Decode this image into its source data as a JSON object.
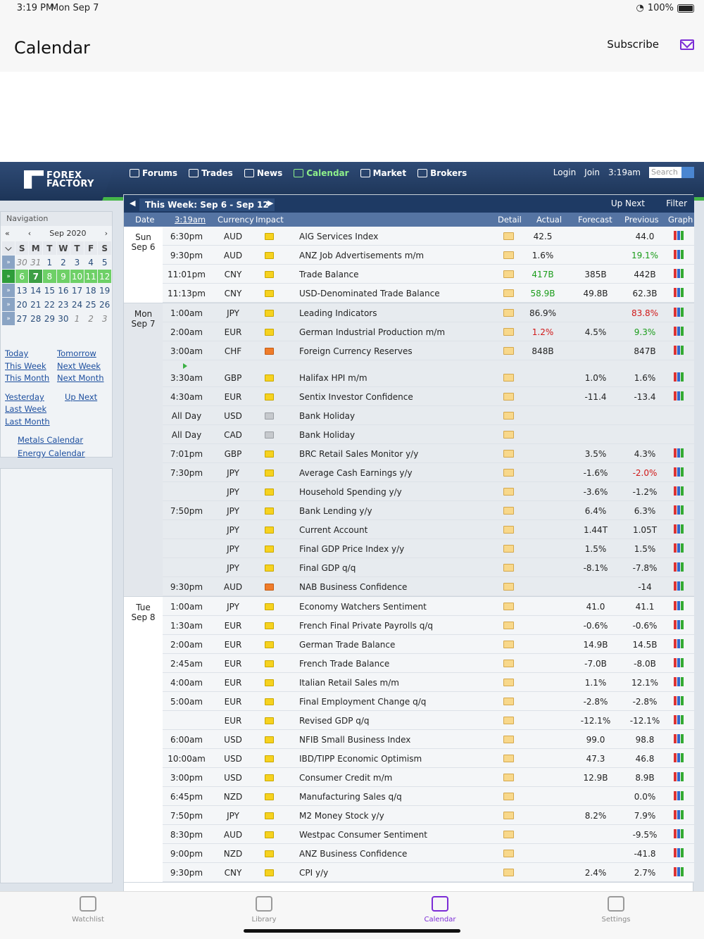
{
  "status_bar": {
    "time": "3:19 PM",
    "date": "Mon Sep 7",
    "battery": "100%"
  },
  "app_header": {
    "title": "Calendar",
    "subscribe": "Subscribe"
  },
  "site": {
    "logo": [
      "FOREX",
      "FACTORY"
    ],
    "nav": [
      {
        "label": "Forums"
      },
      {
        "label": "Trades"
      },
      {
        "label": "News"
      },
      {
        "label": "Calendar"
      },
      {
        "label": "Market"
      },
      {
        "label": "Brokers"
      }
    ],
    "right": {
      "login": "Login",
      "join": "Join",
      "clock": "3:19am",
      "search_placeholder": "Search"
    }
  },
  "sidebar": {
    "heading": "Navigation",
    "cal_prev2": "«",
    "cal_prev": "‹",
    "cal_next": "›",
    "month": "Sep 2020",
    "days": [
      "S",
      "M",
      "T",
      "W",
      "T",
      "F",
      "S"
    ],
    "weeks": [
      [
        "30",
        "31",
        "1",
        "2",
        "3",
        "4",
        "5"
      ],
      [
        "6",
        "7",
        "8",
        "9",
        "10",
        "11",
        "12"
      ],
      [
        "13",
        "14",
        "15",
        "16",
        "17",
        "18",
        "19"
      ],
      [
        "20",
        "21",
        "22",
        "23",
        "24",
        "25",
        "26"
      ],
      [
        "27",
        "28",
        "29",
        "30",
        "1",
        "2",
        "3"
      ]
    ],
    "links": {
      "today": "Today",
      "tomorrow": "Tomorrow",
      "this_week": "This Week",
      "next_week": "Next Week",
      "this_month": "This Month",
      "next_month": "Next Month",
      "yesterday": "Yesterday",
      "up_next": "Up Next",
      "last_week": "Last Week",
      "last_month": "Last Month",
      "metals": "Metals Calendar",
      "energy": "Energy Calendar"
    }
  },
  "calendar": {
    "week_label": "This Week: Sep 6 - Sep 12",
    "up_next": "Up Next",
    "filter": "Filter",
    "columns": {
      "date": "Date",
      "time": "3:19am",
      "currency": "Currency",
      "impact": "Impact",
      "detail": "Detail",
      "actual": "Actual",
      "forecast": "Forecast",
      "previous": "Previous",
      "graph": "Graph"
    },
    "days": [
      {
        "label": "Sun",
        "date": "Sep 6",
        "events": [
          {
            "time": "6:30pm",
            "cur": "AUD",
            "impact": "yellow",
            "title": "AIG Services Index",
            "actual": "42.5",
            "forecast": "",
            "previous": "44.0"
          },
          {
            "time": "9:30pm",
            "cur": "AUD",
            "impact": "yellow",
            "title": "ANZ Job Advertisements m/m",
            "actual": "1.6%",
            "forecast": "",
            "previous": "19.1%",
            "prev_color": "green"
          },
          {
            "time": "11:01pm",
            "cur": "CNY",
            "impact": "yellow",
            "title": "Trade Balance",
            "actual": "417B",
            "act_color": "green",
            "forecast": "385B",
            "previous": "442B"
          },
          {
            "time": "11:13pm",
            "cur": "CNY",
            "impact": "yellow",
            "title": "USD-Denominated Trade Balance",
            "actual": "58.9B",
            "act_color": "green",
            "forecast": "49.8B",
            "previous": "62.3B"
          }
        ]
      },
      {
        "label": "Mon",
        "date": "Sep 7",
        "alt": true,
        "events": [
          {
            "time": "1:00am",
            "cur": "JPY",
            "impact": "yellow",
            "title": "Leading Indicators",
            "actual": "86.9%",
            "forecast": "",
            "previous": "83.8%",
            "prev_color": "red"
          },
          {
            "time": "2:00am",
            "cur": "EUR",
            "impact": "yellow",
            "title": "German Industrial Production m/m",
            "actual": "1.2%",
            "act_color": "red",
            "forecast": "4.5%",
            "previous": "9.3%",
            "prev_color": "green"
          },
          {
            "time": "3:00am",
            "cur": "CHF",
            "impact": "orange",
            "title": "Foreign Currency Reserves",
            "actual": "848B",
            "forecast": "",
            "previous": "847B"
          },
          {
            "time": "3:30am",
            "cur": "GBP",
            "impact": "yellow",
            "title": "Halifax HPI m/m",
            "actual": "",
            "forecast": "1.0%",
            "previous": "1.6%",
            "tall": true
          },
          {
            "time": "4:30am",
            "cur": "EUR",
            "impact": "yellow",
            "title": "Sentix Investor Confidence",
            "actual": "",
            "forecast": "-11.4",
            "previous": "-13.4"
          },
          {
            "time": "All Day",
            "cur": "USD",
            "impact": "gray",
            "title": "Bank Holiday",
            "actual": "",
            "forecast": "",
            "previous": "",
            "nograph": true
          },
          {
            "time": "All Day",
            "cur": "CAD",
            "impact": "gray",
            "title": "Bank Holiday",
            "actual": "",
            "forecast": "",
            "previous": "",
            "nograph": true
          },
          {
            "time": "7:01pm",
            "cur": "GBP",
            "impact": "yellow",
            "title": "BRC Retail Sales Monitor y/y",
            "actual": "",
            "forecast": "3.5%",
            "previous": "4.3%"
          },
          {
            "time": "7:30pm",
            "cur": "JPY",
            "impact": "yellow",
            "title": "Average Cash Earnings y/y",
            "actual": "",
            "forecast": "-1.6%",
            "previous": "-2.0%",
            "prev_color": "red"
          },
          {
            "time": "",
            "cur": "JPY",
            "impact": "yellow",
            "title": "Household Spending y/y",
            "actual": "",
            "forecast": "-3.6%",
            "previous": "-1.2%"
          },
          {
            "time": "7:50pm",
            "cur": "JPY",
            "impact": "yellow",
            "title": "Bank Lending y/y",
            "actual": "",
            "forecast": "6.4%",
            "previous": "6.3%"
          },
          {
            "time": "",
            "cur": "JPY",
            "impact": "yellow",
            "title": "Current Account",
            "actual": "",
            "forecast": "1.44T",
            "previous": "1.05T"
          },
          {
            "time": "",
            "cur": "JPY",
            "impact": "yellow",
            "title": "Final GDP Price Index y/y",
            "actual": "",
            "forecast": "1.5%",
            "previous": "1.5%"
          },
          {
            "time": "",
            "cur": "JPY",
            "impact": "yellow",
            "title": "Final GDP q/q",
            "actual": "",
            "forecast": "-8.1%",
            "previous": "-7.8%"
          },
          {
            "time": "9:30pm",
            "cur": "AUD",
            "impact": "orange",
            "title": "NAB Business Confidence",
            "actual": "",
            "forecast": "",
            "previous": "-14"
          }
        ]
      },
      {
        "label": "Tue",
        "date": "Sep 8",
        "events": [
          {
            "time": "1:00am",
            "cur": "JPY",
            "impact": "yellow",
            "title": "Economy Watchers Sentiment",
            "actual": "",
            "forecast": "41.0",
            "previous": "41.1"
          },
          {
            "time": "1:30am",
            "cur": "EUR",
            "impact": "yellow",
            "title": "French Final Private Payrolls q/q",
            "actual": "",
            "forecast": "-0.6%",
            "previous": "-0.6%"
          },
          {
            "time": "2:00am",
            "cur": "EUR",
            "impact": "yellow",
            "title": "German Trade Balance",
            "actual": "",
            "forecast": "14.9B",
            "previous": "14.5B"
          },
          {
            "time": "2:45am",
            "cur": "EUR",
            "impact": "yellow",
            "title": "French Trade Balance",
            "actual": "",
            "forecast": "-7.0B",
            "previous": "-8.0B"
          },
          {
            "time": "4:00am",
            "cur": "EUR",
            "impact": "yellow",
            "title": "Italian Retail Sales m/m",
            "actual": "",
            "forecast": "1.1%",
            "previous": "12.1%"
          },
          {
            "time": "5:00am",
            "cur": "EUR",
            "impact": "yellow",
            "title": "Final Employment Change q/q",
            "actual": "",
            "forecast": "-2.8%",
            "previous": "-2.8%"
          },
          {
            "time": "",
            "cur": "EUR",
            "impact": "yellow",
            "title": "Revised GDP q/q",
            "actual": "",
            "forecast": "-12.1%",
            "previous": "-12.1%"
          },
          {
            "time": "6:00am",
            "cur": "USD",
            "impact": "yellow",
            "title": "NFIB Small Business Index",
            "actual": "",
            "forecast": "99.0",
            "previous": "98.8"
          },
          {
            "time": "10:00am",
            "cur": "USD",
            "impact": "yellow",
            "title": "IBD/TIPP Economic Optimism",
            "actual": "",
            "forecast": "47.3",
            "previous": "46.8"
          },
          {
            "time": "3:00pm",
            "cur": "USD",
            "impact": "yellow",
            "title": "Consumer Credit m/m",
            "actual": "",
            "forecast": "12.9B",
            "previous": "8.9B"
          },
          {
            "time": "6:45pm",
            "cur": "NZD",
            "impact": "yellow",
            "title": "Manufacturing Sales q/q",
            "actual": "",
            "forecast": "",
            "previous": "0.0%"
          },
          {
            "time": "7:50pm",
            "cur": "JPY",
            "impact": "yellow",
            "title": "M2 Money Stock y/y",
            "actual": "",
            "forecast": "8.2%",
            "previous": "7.9%"
          },
          {
            "time": "8:30pm",
            "cur": "AUD",
            "impact": "yellow",
            "title": "Westpac Consumer Sentiment",
            "actual": "",
            "forecast": "",
            "previous": "-9.5%"
          },
          {
            "time": "9:00pm",
            "cur": "NZD",
            "impact": "yellow",
            "title": "ANZ Business Confidence",
            "actual": "",
            "forecast": "",
            "previous": "-41.8"
          },
          {
            "time": "9:30pm",
            "cur": "CNY",
            "impact": "yellow",
            "title": "CPI y/y",
            "actual": "",
            "forecast": "2.4%",
            "previous": "2.7%"
          }
        ]
      }
    ]
  },
  "tabbar": [
    {
      "label": "Watchlist"
    },
    {
      "label": "Library"
    },
    {
      "label": "Calendar"
    },
    {
      "label": "Settings"
    }
  ]
}
